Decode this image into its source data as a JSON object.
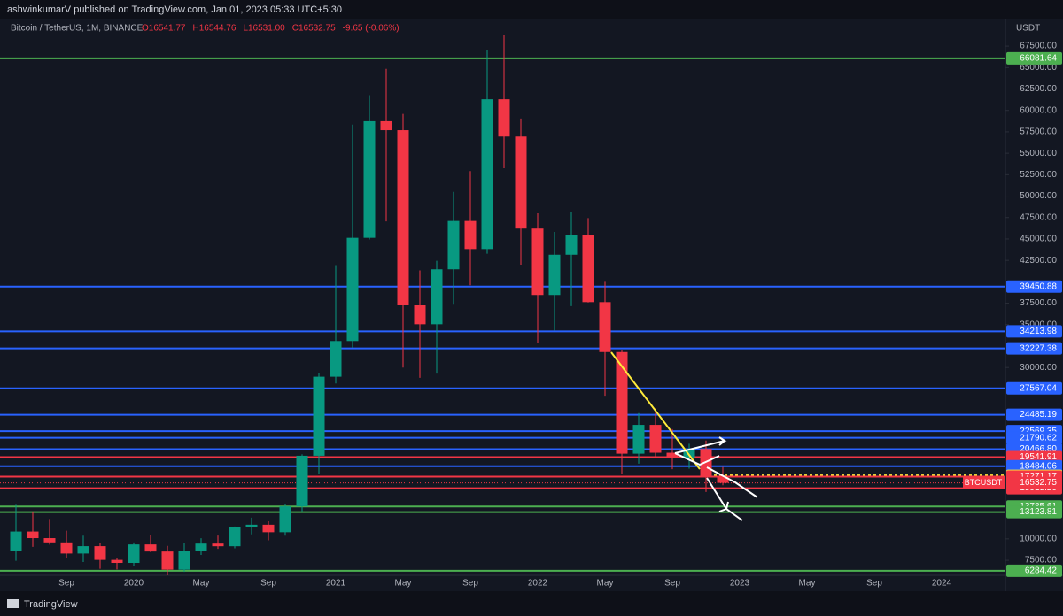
{
  "chart_data": {
    "type": "candlestick",
    "header": "ashwinkumarV published on TradingView.com, Jan 01, 2023 05:33 UTC+5:30",
    "symbol": "Bitcoin / TetherUS, 1M, BINANCE",
    "ohlc_text": [
      "O16541.77",
      "H16544.76",
      "L16531.00",
      "C16532.75",
      "-9.65 (-0.06%)"
    ],
    "currency": "USDT",
    "brand": "TradingView",
    "up_color": "#089981",
    "down_color": "#f23645",
    "categories": [
      null,
      null,
      null,
      "Sep",
      null,
      null,
      null,
      "2020",
      null,
      null,
      null,
      "May",
      null,
      null,
      null,
      "Sep",
      null,
      null,
      null,
      "2021",
      null,
      null,
      null,
      "May",
      null,
      null,
      null,
      "Sep",
      null,
      null,
      null,
      "2022",
      null,
      null,
      null,
      "May",
      null,
      null,
      null,
      "Sep",
      null,
      null,
      null,
      "2023",
      null,
      null,
      null,
      "May",
      null,
      null,
      null,
      "Sep",
      null,
      null,
      null,
      "2024",
      null,
      null,
      null,
      null
    ],
    "open": [
      8545,
      10855,
      10085,
      9590,
      8290,
      9150,
      7545,
      7195,
      9350,
      8525,
      6410,
      8625,
      9450,
      9140,
      11335,
      11650,
      10775,
      13790,
      19700,
      28925,
      33090,
      45135,
      58740,
      57695,
      37250,
      35045,
      41460,
      47100,
      43825,
      61300,
      56950,
      46215,
      38465,
      43160,
      45510,
      37630,
      31800,
      19940,
      23300,
      20050,
      19420,
      20490,
      17165,
      null,
      null,
      null,
      null,
      null,
      null,
      null,
      null,
      null,
      null,
      null,
      null,
      null,
      null,
      null,
      null,
      null
    ],
    "high": [
      13970,
      13200,
      12325,
      10950,
      10370,
      9510,
      7750,
      9580,
      10500,
      9190,
      9470,
      10070,
      10380,
      11445,
      12470,
      12050,
      14100,
      19865,
      29300,
      41950,
      58350,
      61780,
      64850,
      59600,
      41330,
      42450,
      50500,
      52920,
      67000,
      69000,
      59050,
      47990,
      45820,
      48190,
      47440,
      40000,
      31990,
      24670,
      25210,
      22800,
      21100,
      21480,
      18390,
      null,
      null,
      null,
      null,
      null,
      null,
      null,
      null,
      null,
      null,
      null,
      null,
      null,
      null,
      null,
      null,
      null
    ],
    "low": [
      7440,
      9070,
      9320,
      7710,
      7300,
      6515,
      6435,
      6870,
      8450,
      3780,
      6150,
      8120,
      8830,
      8895,
      10525,
      9825,
      10370,
      13200,
      17570,
      28130,
      32300,
      44950,
      47045,
      30000,
      28800,
      29280,
      37330,
      39600,
      43280,
      53260,
      42000,
      32900,
      34320,
      37155,
      37580,
      26700,
      17620,
      18780,
      19520,
      18125,
      18190,
      15475,
      16255,
      null,
      null,
      null,
      null,
      null,
      null,
      null,
      null,
      null,
      null,
      null,
      null,
      null,
      null,
      null,
      null,
      null
    ],
    "close": [
      10855,
      10085,
      9590,
      8290,
      9150,
      7545,
      7195,
      9350,
      8525,
      6410,
      8625,
      9450,
      9140,
      11335,
      11650,
      10775,
      13790,
      19700,
      28925,
      33090,
      45135,
      58740,
      57695,
      37250,
      35045,
      41460,
      47100,
      43825,
      61300,
      56950,
      46215,
      38465,
      43160,
      45510,
      37630,
      31800,
      19940,
      23300,
      20050,
      19420,
      20490,
      17165,
      16532.75,
      null,
      null,
      null,
      null,
      null,
      null,
      null,
      null,
      null,
      null,
      null,
      null,
      null,
      null,
      null,
      null,
      null
    ],
    "ylim": [
      5750,
      68750
    ],
    "yticks": [
      {
        "value": 7500,
        "label": "7500.00"
      },
      {
        "value": 10000,
        "label": "10000.00"
      },
      {
        "value": 30000,
        "label": "30000.00"
      },
      {
        "value": 35000,
        "label": "35000.00"
      },
      {
        "value": 37500,
        "label": "37500.00"
      },
      {
        "value": 42500,
        "label": "42500.00"
      },
      {
        "value": 45000,
        "label": "45000.00"
      },
      {
        "value": 47500,
        "label": "47500.00"
      },
      {
        "value": 50000,
        "label": "50000.00"
      },
      {
        "value": 52500,
        "label": "52500.00"
      },
      {
        "value": 55000,
        "label": "55000.00"
      },
      {
        "value": 57500,
        "label": "57500.00"
      },
      {
        "value": 60000,
        "label": "60000.00"
      },
      {
        "value": 62500,
        "label": "62500.00"
      },
      {
        "value": 65000,
        "label": "65000.00"
      },
      {
        "value": 67500,
        "label": "67500.00"
      }
    ],
    "levels": [
      {
        "value": 66081.64,
        "label": "66081.64",
        "color": "#4caf50"
      },
      {
        "value": 39450.88,
        "label": "39450.88",
        "color": "#2962ff"
      },
      {
        "value": 34213.98,
        "label": "34213.98",
        "color": "#2962ff"
      },
      {
        "value": 32227.38,
        "label": "32227.38",
        "color": "#2962ff"
      },
      {
        "value": 27567.04,
        "label": "27567.04",
        "color": "#2962ff"
      },
      {
        "value": 24485.19,
        "label": "24485.19",
        "color": "#2962ff"
      },
      {
        "value": 22569.35,
        "label": "22569.35",
        "color": "#2962ff"
      },
      {
        "value": 21790.62,
        "label": "21790.62",
        "color": "#2962ff"
      },
      {
        "value": 20466.8,
        "label": "20466.80",
        "color": "#2962ff"
      },
      {
        "value": 19541.91,
        "label": "19541.91",
        "color": "#f23645"
      },
      {
        "value": 18484.06,
        "label": "18484.06",
        "color": "#2962ff"
      },
      {
        "value": 17351.98,
        "label": "17351.98",
        "color": "#ffeb3b",
        "line_style": "dotted"
      },
      {
        "value": 17271.17,
        "label": "17271.17",
        "color": "#f23645"
      },
      {
        "value": 15915.2,
        "label": "15915.20",
        "color": "#f23645"
      },
      {
        "value": 13785.61,
        "label": "13785.61",
        "color": "#4caf50"
      },
      {
        "value": 13123.81,
        "label": "13123.81",
        "color": "#4caf50"
      },
      {
        "value": 6284.42,
        "label": "6284.42",
        "color": "#4caf50"
      }
    ],
    "last_price": {
      "symbol": "BTCUSDT",
      "value": 16532.75,
      "color": "#f23645"
    }
  }
}
